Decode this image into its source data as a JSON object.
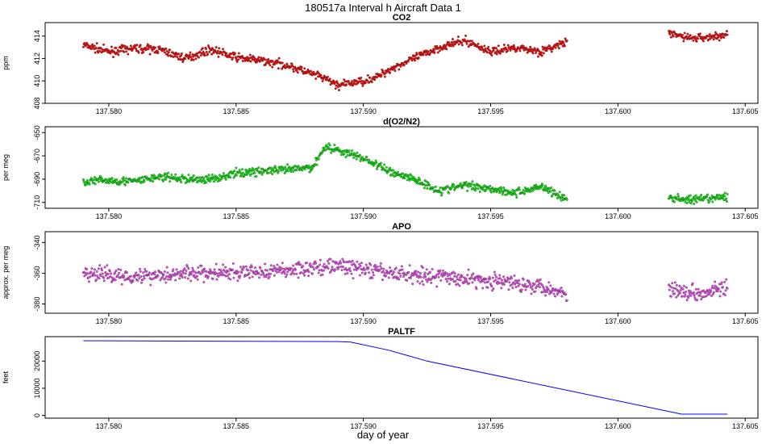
{
  "figure": {
    "title": "180517a   Interval h Aircraft Data 1",
    "xlabel": "day of year"
  },
  "chart_data": [
    {
      "type": "scatter",
      "title": "CO2",
      "ylabel": "ppm",
      "color": "#ff0000",
      "xlim": [
        137.5775,
        137.6055
      ],
      "ylim": [
        408,
        415.2
      ],
      "x_ticks": [
        "137.580",
        "137.585",
        "137.590",
        "137.595",
        "137.600",
        "137.605"
      ],
      "y_ticks": [
        "408",
        "410",
        "412",
        "414"
      ],
      "series": [
        {
          "segments": [
            [
              137.579,
              137.598
            ],
            [
              137.602,
              137.6043
            ]
          ],
          "x": [
            137.579,
            137.58,
            137.581,
            137.582,
            137.583,
            137.584,
            137.585,
            137.586,
            137.587,
            137.5875,
            137.588,
            137.5885,
            137.589,
            137.5895,
            137.59,
            137.5905,
            137.591,
            137.592,
            137.593,
            137.594,
            137.595,
            137.596,
            137.597,
            137.598,
            137.602,
            137.603,
            137.604,
            137.6043
          ],
          "y": [
            413.2,
            412.6,
            412.9,
            412.8,
            412.0,
            412.8,
            412.1,
            411.8,
            411.4,
            411.0,
            410.6,
            410.2,
            409.6,
            409.8,
            410.0,
            410.3,
            411.0,
            412.0,
            413.0,
            413.6,
            412.6,
            413.0,
            412.6,
            413.5,
            414.2,
            413.8,
            414.0,
            414.1
          ],
          "noise": 0.35
        }
      ]
    },
    {
      "type": "scatter",
      "title": "d(O2/N2)",
      "ylabel": "per meg",
      "color": "#00ee00",
      "xlim": [
        137.5775,
        137.6055
      ],
      "ylim": [
        -715,
        -645
      ],
      "x_ticks": [
        "137.580",
        "137.585",
        "137.590",
        "137.595",
        "137.600",
        "137.605"
      ],
      "y_ticks": [
        "-650",
        "-670",
        "-690",
        "-710"
      ],
      "series": [
        {
          "segments": [
            [
              137.579,
              137.598
            ],
            [
              137.602,
              137.6043
            ]
          ],
          "x": [
            137.579,
            137.58,
            137.581,
            137.582,
            137.583,
            137.584,
            137.585,
            137.586,
            137.587,
            137.588,
            137.5885,
            137.589,
            137.59,
            137.591,
            137.592,
            137.593,
            137.594,
            137.595,
            137.596,
            137.597,
            137.598,
            137.602,
            137.603,
            137.604,
            137.6043
          ],
          "y": [
            -692,
            -691,
            -692,
            -688,
            -690,
            -690,
            -685,
            -683,
            -682,
            -680,
            -662,
            -665,
            -672,
            -683,
            -690,
            -700,
            -695,
            -698,
            -702,
            -696,
            -708,
            -706,
            -708,
            -706,
            -705
          ],
          "noise": 3.5
        }
      ]
    },
    {
      "type": "scatter",
      "title": "APO",
      "ylabel": "approx. per meg",
      "color": "#ee44ee",
      "xlim": [
        137.5775,
        137.6055
      ],
      "ylim": [
        -386,
        -333
      ],
      "x_ticks": [
        "137.580",
        "137.585",
        "137.590",
        "137.595",
        "137.600",
        "137.605"
      ],
      "y_ticks": [
        "-340",
        "-360",
        "-380"
      ],
      "series": [
        {
          "segments": [
            [
              137.579,
              137.598
            ],
            [
              137.602,
              137.6043
            ]
          ],
          "x": [
            137.579,
            137.581,
            137.583,
            137.585,
            137.587,
            137.589,
            137.591,
            137.593,
            137.595,
            137.597,
            137.598,
            137.602,
            137.603,
            137.6043
          ],
          "y": [
            -360,
            -362,
            -360,
            -360,
            -358,
            -355,
            -360,
            -362,
            -365,
            -368,
            -374,
            -370,
            -373,
            -369
          ],
          "noise": 5
        }
      ]
    },
    {
      "type": "line",
      "title": "PALTF",
      "ylabel": "feet",
      "color": "#0000ff",
      "xlim": [
        137.5775,
        137.6055
      ],
      "ylim": [
        -1000,
        29000
      ],
      "x_ticks": [
        "137.580",
        "137.585",
        "137.590",
        "137.595",
        "137.600",
        "137.605"
      ],
      "y_ticks": [
        "0",
        "10000",
        "20000"
      ],
      "series": [
        {
          "x": [
            137.579,
            137.589,
            137.5895,
            137.591,
            137.5925,
            137.6025,
            137.6043
          ],
          "y": [
            27500,
            27200,
            27000,
            24000,
            20000,
            500,
            500
          ]
        }
      ]
    }
  ]
}
